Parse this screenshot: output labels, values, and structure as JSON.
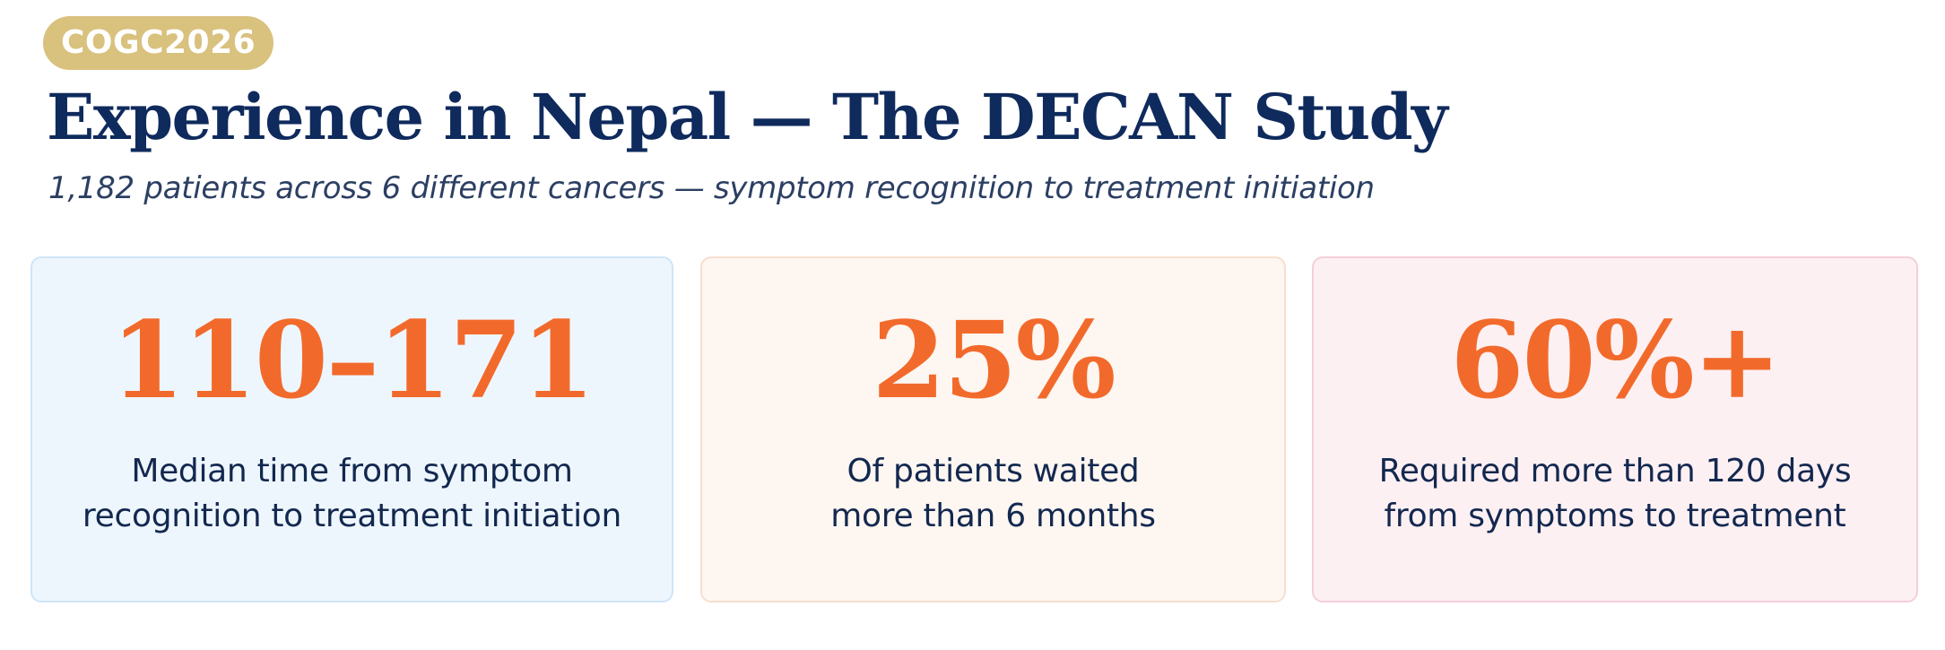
{
  "badge": "COGC2026",
  "title": "Experience in Nepal — The DECAN Study",
  "subtitle": "1,182 patients across 6 different cancers — symptom recognition to treatment initiation",
  "colors": {
    "title": "#0f2a5c",
    "accent": "#f26a2b",
    "badge": "#d9c17e",
    "card_blue": "#eef6fd",
    "card_peach": "#fdf6f1",
    "card_pink": "#fdf0f3"
  },
  "stats": [
    {
      "value": "110–171",
      "line1": "Median time from symptom",
      "line2": "recognition to treatment initiation"
    },
    {
      "value": "25%",
      "line1": "Of patients waited",
      "line2": "more than 6 months"
    },
    {
      "value": "60%+",
      "line1": "Required more than 120 days",
      "line2": "from symptoms to treatment"
    }
  ]
}
